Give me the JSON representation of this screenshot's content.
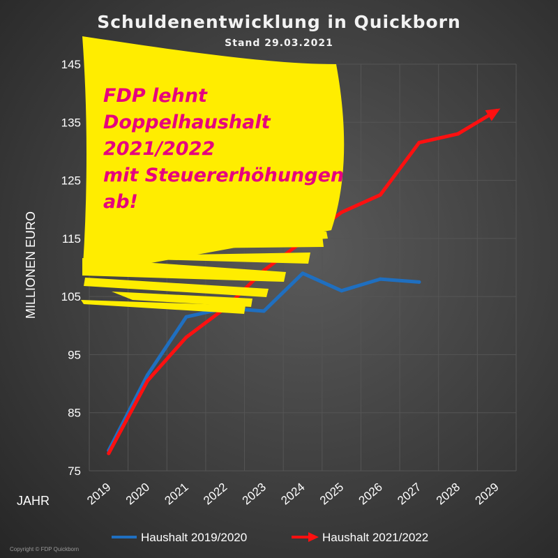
{
  "colors": {
    "series_2019_2020": "#1f6fc0",
    "series_2021_2022": "#ff1010",
    "annotation_bg": "#ffed00",
    "annotation_text": "#e6007e",
    "grid": "#555555"
  },
  "annotation": {
    "lines": [
      "FDP lehnt",
      "Doppelhaushalt",
      "2021/2022",
      "mit Steuererhöhungen",
      "ab!"
    ]
  },
  "copyright": "Copyright © FDP Quickborn",
  "chart_data": {
    "type": "line",
    "title": "Schuldenentwicklung in Quickborn",
    "subtitle": "Stand 29.03.2021",
    "xlabel": "JAHR",
    "ylabel": "MILLIONEN EURO",
    "ylim": [
      75,
      145
    ],
    "yticks": [
      75,
      85,
      95,
      105,
      115,
      125,
      135,
      145
    ],
    "categories": [
      "2019",
      "2020",
      "2021",
      "2022",
      "2023",
      "2024",
      "2025",
      "2026",
      "2027",
      "2028",
      "2029"
    ],
    "grid": true,
    "legend": "bottom",
    "series": [
      {
        "name": "Haushalt 2019/2020",
        "values": [
          78.5,
          91.5,
          101.5,
          103,
          102.5,
          109,
          106,
          108,
          107.5,
          null,
          null
        ]
      },
      {
        "name": "Haushalt 2021/2022",
        "values": [
          78,
          90.5,
          98,
          103,
          109.5,
          114.5,
          119.5,
          122.5,
          131.5,
          133,
          137
        ]
      }
    ]
  }
}
